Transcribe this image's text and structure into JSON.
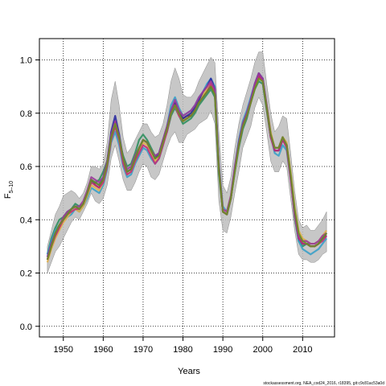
{
  "chart_data": {
    "type": "line",
    "title": "",
    "xlabel": "Years",
    "ylabel": "F",
    "ylabel_subscript": "5–10",
    "xlim": [
      1944,
      2018
    ],
    "ylim": [
      -0.04,
      1.08
    ],
    "x_ticks": [
      1950,
      1960,
      1970,
      1980,
      1990,
      2000,
      2010
    ],
    "x_tick_labels": [
      "1950",
      "1960",
      "1970",
      "1980",
      "1990",
      "2000",
      "2010"
    ],
    "y_ticks": [
      0.0,
      0.2,
      0.4,
      0.6,
      0.8,
      1.0
    ],
    "y_tick_labels": [
      "0.0",
      "0.2",
      "0.4",
      "0.6",
      "0.8",
      "1.0"
    ],
    "grid": true,
    "grid_style": "dotted",
    "x": [
      1946,
      1947,
      1948,
      1949,
      1950,
      1951,
      1952,
      1953,
      1954,
      1955,
      1956,
      1957,
      1958,
      1959,
      1960,
      1961,
      1962,
      1963,
      1964,
      1965,
      1966,
      1967,
      1968,
      1969,
      1970,
      1971,
      1972,
      1973,
      1974,
      1975,
      1976,
      1977,
      1978,
      1979,
      1980,
      1981,
      1982,
      1983,
      1984,
      1985,
      1986,
      1987,
      1988,
      1989,
      1990,
      1991,
      1992,
      1993,
      1994,
      1995,
      1996,
      1997,
      1998,
      1999,
      2000,
      2001,
      2002,
      2003,
      2004,
      2005,
      2006,
      2007,
      2008,
      2009,
      2010,
      2011,
      2012,
      2013,
      2014,
      2015,
      2016
    ],
    "band": {
      "color": "#bdbdbd",
      "lower": [
        0.2,
        0.24,
        0.28,
        0.3,
        0.33,
        0.36,
        0.39,
        0.41,
        0.4,
        0.43,
        0.46,
        0.5,
        0.47,
        0.46,
        0.48,
        0.53,
        0.63,
        0.68,
        0.62,
        0.55,
        0.51,
        0.51,
        0.54,
        0.58,
        0.61,
        0.6,
        0.56,
        0.55,
        0.57,
        0.62,
        0.67,
        0.71,
        0.73,
        0.69,
        0.69,
        0.72,
        0.73,
        0.74,
        0.76,
        0.77,
        0.78,
        0.81,
        0.76,
        0.47,
        0.36,
        0.35,
        0.41,
        0.5,
        0.58,
        0.67,
        0.71,
        0.75,
        0.82,
        0.86,
        0.83,
        0.73,
        0.62,
        0.58,
        0.58,
        0.62,
        0.6,
        0.48,
        0.36,
        0.27,
        0.25,
        0.25,
        0.24,
        0.24,
        0.25,
        0.27,
        0.28
      ],
      "upper": [
        0.3,
        0.36,
        0.42,
        0.45,
        0.49,
        0.5,
        0.51,
        0.5,
        0.48,
        0.5,
        0.54,
        0.6,
        0.6,
        0.59,
        0.61,
        0.69,
        0.85,
        0.92,
        0.83,
        0.71,
        0.65,
        0.67,
        0.7,
        0.73,
        0.76,
        0.76,
        0.73,
        0.71,
        0.72,
        0.76,
        0.83,
        0.92,
        0.97,
        0.93,
        0.87,
        0.86,
        0.86,
        0.88,
        0.92,
        0.95,
        0.98,
        1.01,
        0.99,
        0.73,
        0.53,
        0.5,
        0.56,
        0.67,
        0.76,
        0.83,
        0.88,
        0.93,
        0.99,
        1.03,
        1.03,
        0.91,
        0.8,
        0.73,
        0.75,
        0.79,
        0.78,
        0.65,
        0.51,
        0.4,
        0.37,
        0.38,
        0.36,
        0.36,
        0.38,
        0.4,
        0.43
      ]
    },
    "series": [
      {
        "color": "#7a0a0a",
        "values": [
          0.25,
          0.3,
          0.34,
          0.37,
          0.4,
          0.42,
          0.44,
          0.45,
          0.44,
          0.46,
          0.5,
          0.55,
          0.53,
          0.52,
          0.55,
          0.61,
          0.72,
          0.77,
          0.71,
          0.62,
          0.58,
          0.59,
          0.63,
          0.66,
          0.7,
          0.69,
          0.66,
          0.63,
          0.64,
          0.69,
          0.74,
          0.81,
          0.84,
          0.8,
          0.78,
          0.79,
          0.79,
          0.81,
          0.84,
          0.86,
          0.88,
          0.9,
          0.87,
          0.59,
          0.43,
          0.42,
          0.48,
          0.59,
          0.68,
          0.75,
          0.79,
          0.84,
          0.9,
          0.94,
          0.92,
          0.82,
          0.72,
          0.66,
          0.66,
          0.7,
          0.68,
          0.56,
          0.43,
          0.33,
          0.31,
          0.31,
          0.3,
          0.3,
          0.31,
          0.33,
          0.35
        ]
      },
      {
        "color": "#2f8f5f",
        "values": [
          0.27,
          0.33,
          0.37,
          0.4,
          0.41,
          0.43,
          0.44,
          0.46,
          0.45,
          0.46,
          0.49,
          0.54,
          0.54,
          0.55,
          0.58,
          0.62,
          0.71,
          0.75,
          0.7,
          0.64,
          0.6,
          0.61,
          0.65,
          0.7,
          0.72,
          0.7,
          0.67,
          0.64,
          0.65,
          0.7,
          0.73,
          0.79,
          0.82,
          0.79,
          0.76,
          0.77,
          0.78,
          0.8,
          0.83,
          0.85,
          0.87,
          0.89,
          0.86,
          0.57,
          0.43,
          0.42,
          0.48,
          0.58,
          0.67,
          0.74,
          0.78,
          0.84,
          0.89,
          0.92,
          0.91,
          0.81,
          0.71,
          0.67,
          0.67,
          0.71,
          0.68,
          0.56,
          0.41,
          0.32,
          0.3,
          0.31,
          0.31,
          0.31,
          0.32,
          0.33,
          0.34
        ]
      },
      {
        "color": "#3aa0c8",
        "values": [
          0.27,
          0.32,
          0.36,
          0.38,
          0.4,
          0.41,
          0.42,
          0.44,
          0.43,
          0.45,
          0.48,
          0.52,
          0.51,
          0.5,
          0.53,
          0.59,
          0.69,
          0.73,
          0.68,
          0.6,
          0.56,
          0.57,
          0.61,
          0.64,
          0.67,
          0.66,
          0.63,
          0.61,
          0.63,
          0.68,
          0.75,
          0.83,
          0.86,
          0.82,
          0.79,
          0.8,
          0.81,
          0.83,
          0.86,
          0.88,
          0.91,
          0.93,
          0.9,
          0.61,
          0.45,
          0.43,
          0.49,
          0.6,
          0.7,
          0.77,
          0.81,
          0.86,
          0.91,
          0.95,
          0.93,
          0.83,
          0.72,
          0.65,
          0.64,
          0.68,
          0.66,
          0.55,
          0.42,
          0.32,
          0.29,
          0.28,
          0.27,
          0.28,
          0.29,
          0.31,
          0.33
        ]
      },
      {
        "color": "#e0b04a",
        "values": [
          0.24,
          0.29,
          0.33,
          0.36,
          0.39,
          0.41,
          0.43,
          0.44,
          0.43,
          0.45,
          0.49,
          0.53,
          0.52,
          0.51,
          0.54,
          0.6,
          0.7,
          0.76,
          0.7,
          0.62,
          0.57,
          0.58,
          0.62,
          0.66,
          0.69,
          0.68,
          0.65,
          0.62,
          0.64,
          0.69,
          0.74,
          0.8,
          0.83,
          0.79,
          0.77,
          0.79,
          0.8,
          0.82,
          0.85,
          0.87,
          0.89,
          0.91,
          0.88,
          0.6,
          0.44,
          0.43,
          0.49,
          0.59,
          0.68,
          0.76,
          0.8,
          0.85,
          0.9,
          0.93,
          0.92,
          0.83,
          0.73,
          0.67,
          0.67,
          0.71,
          0.69,
          0.58,
          0.45,
          0.36,
          0.33,
          0.32,
          0.31,
          0.31,
          0.32,
          0.34,
          0.36
        ]
      },
      {
        "color": "#2a2aa0",
        "values": [
          0.26,
          0.31,
          0.35,
          0.38,
          0.4,
          0.42,
          0.44,
          0.45,
          0.44,
          0.46,
          0.5,
          0.55,
          0.54,
          0.53,
          0.56,
          0.62,
          0.73,
          0.79,
          0.72,
          0.63,
          0.58,
          0.59,
          0.63,
          0.67,
          0.7,
          0.69,
          0.66,
          0.63,
          0.65,
          0.7,
          0.75,
          0.81,
          0.84,
          0.8,
          0.78,
          0.79,
          0.8,
          0.82,
          0.85,
          0.88,
          0.9,
          0.93,
          0.89,
          0.6,
          0.43,
          0.42,
          0.48,
          0.59,
          0.69,
          0.76,
          0.8,
          0.85,
          0.91,
          0.95,
          0.93,
          0.82,
          0.71,
          0.66,
          0.66,
          0.7,
          0.68,
          0.56,
          0.42,
          0.33,
          0.31,
          0.31,
          0.3,
          0.3,
          0.31,
          0.33,
          0.34
        ]
      },
      {
        "color": "#c0307a",
        "values": [
          0.25,
          0.3,
          0.34,
          0.37,
          0.4,
          0.42,
          0.43,
          0.44,
          0.44,
          0.46,
          0.5,
          0.54,
          0.53,
          0.52,
          0.54,
          0.6,
          0.7,
          0.75,
          0.7,
          0.61,
          0.57,
          0.58,
          0.62,
          0.65,
          0.68,
          0.67,
          0.64,
          0.61,
          0.63,
          0.68,
          0.73,
          0.8,
          0.83,
          0.79,
          0.77,
          0.78,
          0.79,
          0.81,
          0.84,
          0.86,
          0.88,
          0.91,
          0.88,
          0.59,
          0.43,
          0.42,
          0.48,
          0.59,
          0.68,
          0.75,
          0.79,
          0.84,
          0.9,
          0.94,
          0.92,
          0.82,
          0.71,
          0.66,
          0.66,
          0.7,
          0.67,
          0.55,
          0.42,
          0.33,
          0.31,
          0.31,
          0.3,
          0.3,
          0.31,
          0.32,
          0.34
        ]
      },
      {
        "color": "#9a3a9a",
        "values": [
          0.26,
          0.31,
          0.35,
          0.38,
          0.41,
          0.43,
          0.44,
          0.45,
          0.45,
          0.47,
          0.51,
          0.56,
          0.55,
          0.54,
          0.56,
          0.62,
          0.72,
          0.77,
          0.71,
          0.63,
          0.59,
          0.6,
          0.64,
          0.67,
          0.7,
          0.69,
          0.66,
          0.64,
          0.65,
          0.7,
          0.75,
          0.81,
          0.85,
          0.81,
          0.79,
          0.8,
          0.81,
          0.83,
          0.86,
          0.88,
          0.9,
          0.92,
          0.89,
          0.6,
          0.44,
          0.43,
          0.49,
          0.6,
          0.69,
          0.76,
          0.8,
          0.85,
          0.91,
          0.95,
          0.93,
          0.83,
          0.72,
          0.67,
          0.67,
          0.71,
          0.68,
          0.56,
          0.43,
          0.34,
          0.32,
          0.32,
          0.31,
          0.31,
          0.32,
          0.34,
          0.35
        ]
      },
      {
        "color": "#6b8e23",
        "values": [
          0.25,
          0.3,
          0.35,
          0.38,
          0.4,
          0.42,
          0.44,
          0.45,
          0.44,
          0.46,
          0.5,
          0.55,
          0.54,
          0.53,
          0.55,
          0.61,
          0.71,
          0.76,
          0.71,
          0.63,
          0.58,
          0.59,
          0.63,
          0.67,
          0.7,
          0.69,
          0.66,
          0.63,
          0.64,
          0.69,
          0.74,
          0.8,
          0.83,
          0.8,
          0.77,
          0.78,
          0.79,
          0.81,
          0.84,
          0.86,
          0.88,
          0.9,
          0.87,
          0.59,
          0.43,
          0.42,
          0.48,
          0.58,
          0.68,
          0.75,
          0.79,
          0.84,
          0.89,
          0.93,
          0.92,
          0.82,
          0.72,
          0.67,
          0.67,
          0.71,
          0.68,
          0.57,
          0.44,
          0.35,
          0.32,
          0.31,
          0.3,
          0.3,
          0.31,
          0.33,
          0.35
        ]
      }
    ],
    "footnote": "stockassessment.org, NEA_cod24_2016, r18395, git:c9c81ac53a0d"
  }
}
